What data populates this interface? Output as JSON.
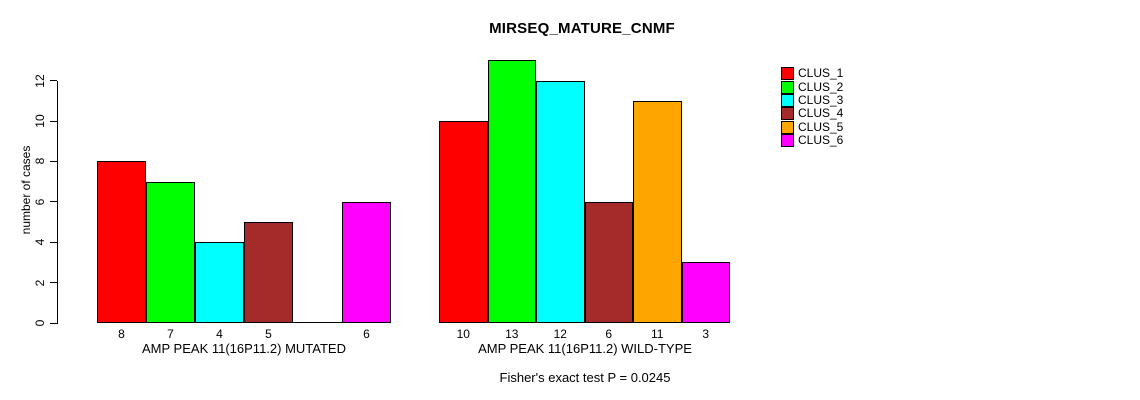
{
  "chart_data": {
    "type": "bar",
    "title": "MIRSEQ_MATURE_CNMF",
    "ylabel": "number of cases",
    "footnote": "Fisher's exact test P = 0.0245",
    "yticks": [
      0,
      2,
      4,
      6,
      8,
      10,
      12
    ],
    "ylim": [
      0,
      13
    ],
    "grid": false,
    "legend_position": "right",
    "legend": [
      {
        "label": "CLUS_1",
        "color": "#FF0000"
      },
      {
        "label": "CLUS_2",
        "color": "#00FF00"
      },
      {
        "label": "CLUS_3",
        "color": "#00FFFF"
      },
      {
        "label": "CLUS_4",
        "color": "#A52A2A"
      },
      {
        "label": "CLUS_5",
        "color": "#FFA500"
      },
      {
        "label": "CLUS_6",
        "color": "#FF00FF"
      }
    ],
    "groups": [
      {
        "label": "AMP PEAK 11(16P11.2) MUTATED",
        "values": [
          8,
          7,
          4,
          5,
          0,
          6
        ],
        "bar_labels": [
          "8",
          "7",
          "4",
          "5",
          "",
          "6"
        ]
      },
      {
        "label": "AMP PEAK 11(16P11.2) WILD-TYPE",
        "values": [
          10,
          13,
          12,
          6,
          11,
          3
        ],
        "bar_labels": [
          "10",
          "13",
          "12",
          "6",
          "11",
          "3"
        ]
      }
    ],
    "axis_color": "#000000"
  }
}
